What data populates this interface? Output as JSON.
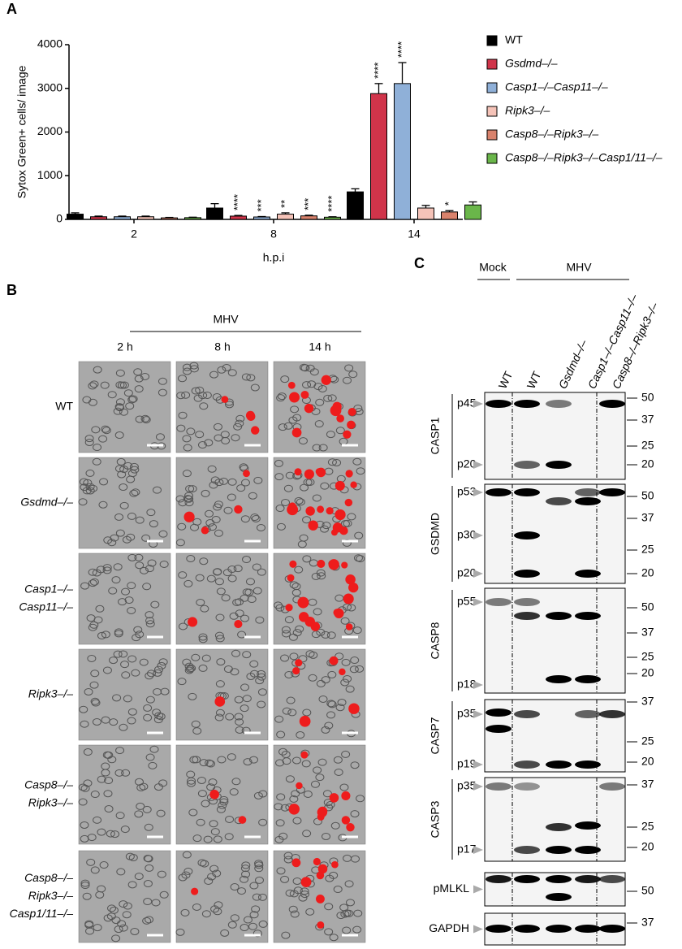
{
  "chart_data": {
    "type": "bar",
    "panel_label": "A",
    "ylabel": "Sytox Green+ cells/ image",
    "xlabel": "h.p.i",
    "categories": [
      "2",
      "8",
      "14"
    ],
    "ylim": [
      0,
      4000
    ],
    "yticks": [
      0,
      1000,
      2000,
      3000,
      4000
    ],
    "series": [
      {
        "name": "WT",
        "color": "#000000",
        "values": [
          120,
          260,
          630
        ],
        "errors": [
          30,
          100,
          70
        ],
        "significance": [
          null,
          null,
          null
        ]
      },
      {
        "name": "Gsdmd–/–",
        "color": "#d0344a",
        "values": [
          60,
          75,
          2880
        ],
        "errors": [
          15,
          15,
          230
        ],
        "significance": [
          null,
          "****",
          "****"
        ]
      },
      {
        "name": "Casp1–/–Casp11–/–",
        "color": "#8fb0d8",
        "values": [
          60,
          55,
          3110
        ],
        "errors": [
          15,
          10,
          480
        ],
        "significance": [
          null,
          "***",
          "****"
        ]
      },
      {
        "name": "Ripk3–/–",
        "color": "#f5c3b8",
        "values": [
          60,
          120,
          260
        ],
        "errors": [
          15,
          30,
          60
        ],
        "significance": [
          null,
          "**",
          null
        ]
      },
      {
        "name": "Casp8–/–Ripk3–/–",
        "color": "#d9826c",
        "values": [
          35,
          80,
          170
        ],
        "errors": [
          10,
          15,
          30
        ],
        "significance": [
          null,
          "***",
          "*"
        ]
      },
      {
        "name": "Casp8–/–Ripk3–/–Casp1/11–/–",
        "color": "#6ab64a",
        "values": [
          40,
          50,
          330
        ],
        "errors": [
          10,
          10,
          70
        ],
        "significance": [
          null,
          "****",
          null
        ]
      }
    ]
  },
  "panel_b": {
    "label": "B",
    "header": "MHV",
    "columns": [
      "2 h",
      "8 h",
      "14 h"
    ],
    "rows": [
      [
        "WT"
      ],
      [
        "Gsdmd–/–"
      ],
      [
        "Casp1–/–",
        "Casp11–/–"
      ],
      [
        "Ripk3–/–"
      ],
      [
        "Casp8–/–",
        "Ripk3–/–"
      ],
      [
        "Casp8–/–",
        "Ripk3–/–",
        "Casp1/11–/–"
      ]
    ]
  },
  "panel_c": {
    "label": "C",
    "groups": [
      "Mock",
      "MHV"
    ],
    "lanes": [
      "WT",
      "WT",
      "Gsdmd–/–",
      "Casp1–/–Casp11–/–",
      "Casp8–/–Ripk3–/–"
    ],
    "blots": [
      {
        "name": "CASP1",
        "bands": [
          "p45",
          "p20"
        ],
        "markers": [
          50,
          37,
          25,
          20
        ]
      },
      {
        "name": "GSDMD",
        "bands": [
          "p53",
          "p30",
          "p20"
        ],
        "markers": [
          50,
          37,
          25,
          20
        ]
      },
      {
        "name": "CASP8",
        "bands": [
          "p55",
          "p18"
        ],
        "markers": [
          50,
          37,
          25,
          20
        ]
      },
      {
        "name": "CASP7",
        "bands": [
          "p35",
          "p19"
        ],
        "markers": [
          37,
          25,
          20
        ]
      },
      {
        "name": "CASP3",
        "bands": [
          "p35",
          "p17"
        ],
        "markers": [
          37,
          25,
          20
        ]
      },
      {
        "name": "pMLKL",
        "bands": [],
        "markers": [
          50
        ]
      },
      {
        "name": "GAPDH",
        "bands": [],
        "markers": [
          37
        ]
      }
    ]
  }
}
